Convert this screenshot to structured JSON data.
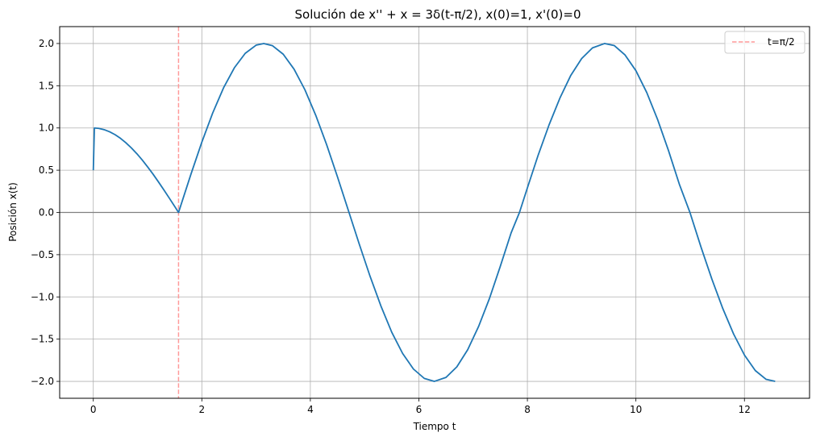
{
  "chart_data": {
    "type": "line",
    "title": "Solución de x'' + x = 3δ(t-π/2), x(0)=1, x'(0)=0",
    "xlabel": "Tiempo t",
    "ylabel": "Posición x(t)",
    "xlim": [
      -0.62,
      13.2
    ],
    "ylim": [
      -2.2,
      2.2
    ],
    "grid": true,
    "legend_position": "top-right",
    "x_ticks": [
      0,
      2,
      4,
      6,
      8,
      10,
      12
    ],
    "x_tick_labels": [
      "0",
      "2",
      "4",
      "6",
      "8",
      "10",
      "12"
    ],
    "y_ticks": [
      -2.0,
      -1.5,
      -1.0,
      -0.5,
      0.0,
      0.5,
      1.0,
      1.5,
      2.0
    ],
    "y_tick_labels": [
      "−2.0",
      "−1.5",
      "−1.0",
      "−0.5",
      "0.0",
      "0.5",
      "1.0",
      "1.5",
      "2.0"
    ],
    "series": [
      {
        "color": "#1f77b4",
        "x": [
          0,
          0.02,
          0.1,
          0.2,
          0.3,
          0.4,
          0.5,
          0.6,
          0.7,
          0.8,
          0.9,
          1.0,
          1.1,
          1.2,
          1.3,
          1.4,
          1.5,
          1.5708,
          1.6,
          1.8,
          2.0,
          2.2,
          2.4,
          2.6,
          2.8,
          3.0,
          3.1416,
          3.3,
          3.5,
          3.7,
          3.9,
          4.1,
          4.3,
          4.5,
          4.7124,
          4.9,
          5.1,
          5.3,
          5.5,
          5.7,
          5.9,
          6.1,
          6.2832,
          6.5,
          6.7,
          6.9,
          7.1,
          7.3,
          7.5,
          7.7,
          7.854,
          8.0,
          8.2,
          8.4,
          8.6,
          8.8,
          9.0,
          9.2,
          9.4248,
          9.6,
          9.8,
          10.0,
          10.2,
          10.4,
          10.6,
          10.8,
          10.9956,
          11.2,
          11.4,
          11.6,
          11.8,
          12.0,
          12.2,
          12.4,
          12.566
        ],
        "y": [
          0.5,
          1.0,
          0.995,
          0.98,
          0.955,
          0.921,
          0.878,
          0.825,
          0.765,
          0.697,
          0.622,
          0.54,
          0.454,
          0.362,
          0.267,
          0.17,
          0.071,
          0.0,
          0.058,
          0.454,
          0.832,
          1.177,
          1.475,
          1.713,
          1.884,
          1.98,
          2.0,
          1.975,
          1.873,
          1.696,
          1.452,
          1.149,
          0.802,
          0.421,
          0.0,
          -0.372,
          -0.755,
          -1.107,
          -1.418,
          -1.669,
          -1.854,
          -1.965,
          -2.0,
          -1.953,
          -1.828,
          -1.625,
          -1.351,
          -1.02,
          -0.639,
          -0.242,
          0.0,
          0.291,
          0.681,
          1.038,
          1.355,
          1.623,
          1.822,
          1.948,
          2.0,
          1.976,
          1.864,
          1.678,
          1.419,
          1.099,
          0.733,
          0.335,
          0.0,
          -0.411,
          -0.789,
          -1.136,
          -1.439,
          -1.688,
          -1.872,
          -1.976,
          -2.0
        ]
      }
    ],
    "annotations": [
      {
        "kind": "vline",
        "x": 1.5708,
        "color": "#ff9999",
        "style": "dashed",
        "label": "t=π/2"
      },
      {
        "kind": "hline",
        "y": 0.0,
        "color": "#808080"
      }
    ],
    "legend": [
      {
        "label": "t=π/2",
        "color": "#ff9999",
        "style": "dashed"
      }
    ]
  }
}
